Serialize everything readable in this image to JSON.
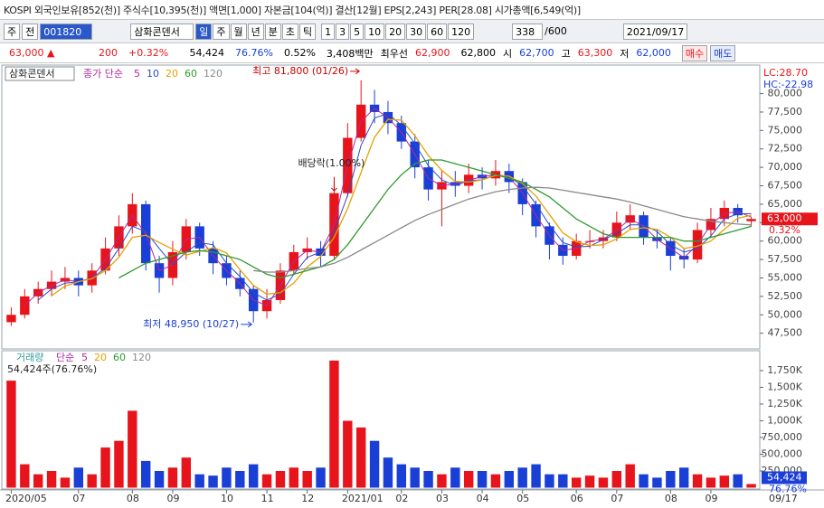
{
  "header": {
    "title": "KOSPI 외국인보유[852(천)] 주식수[10,395(천)] 액면[1,000] 자본금[104(억)] 결산[12월] EPS[2,243] PER[28.08] 시가총액[6,549(억)]"
  },
  "toolbar": {
    "period_type": "주",
    "prev": "전",
    "code": "001820",
    "name": "삼화콘덴서",
    "intervals": [
      "일",
      "주",
      "월",
      "년",
      "분",
      "초",
      "틱"
    ],
    "tick_buttons": [
      "1",
      "3",
      "5",
      "10",
      "20",
      "30",
      "60",
      "120"
    ],
    "count": "338",
    "max": "/600",
    "date": "2021/09/17"
  },
  "quote": {
    "price": "63,000 ▲",
    "change": "200",
    "change_rate": "+0.32%",
    "volume": "54,424",
    "volume_ratio": "76.76%",
    "turnover": "0.52%",
    "amount": "3,408백만",
    "best_label": "최우선",
    "ask": "62,900",
    "bid": "62,800",
    "open_label": "시",
    "open": "62,700",
    "high_label": "고",
    "high": "63,300",
    "low_label": "저",
    "low": "62,000",
    "buy": "매수",
    "sell": "매도"
  },
  "chart_data": {
    "type": "candlestick",
    "title": "삼화콘덴서",
    "ma_label": "종가 단순",
    "categories": [
      "2020/05",
      null,
      null,
      null,
      null,
      "07",
      null,
      null,
      null,
      "08",
      null,
      null,
      "09",
      null,
      null,
      null,
      "10",
      null,
      null,
      "11",
      null,
      null,
      "12",
      null,
      null,
      "2021/01",
      null,
      null,
      null,
      "02",
      null,
      null,
      "03",
      null,
      null,
      "04",
      null,
      null,
      "05",
      null,
      null,
      null,
      "06",
      null,
      null,
      "07",
      null,
      null,
      null,
      "08",
      null,
      null,
      "09",
      null,
      null,
      null
    ],
    "open": [
      49000,
      50000,
      52500,
      53500,
      54500,
      55000,
      54000,
      56000,
      59000,
      62000,
      65000,
      57000,
      55000,
      58500,
      62000,
      59000,
      57000,
      55000,
      53500,
      50500,
      52000,
      56000,
      58500,
      59000,
      58000,
      66500,
      74000,
      78500,
      77500,
      76000,
      73500,
      70000,
      67000,
      68000,
      67500,
      69000,
      68500,
      69500,
      68000,
      65000,
      62000,
      59500,
      58000,
      60000,
      60000,
      60500,
      62500,
      63500,
      60500,
      60000,
      58000,
      57500,
      61500,
      63000,
      64500,
      62700
    ],
    "high": [
      51000,
      53500,
      54500,
      56000,
      56500,
      56000,
      57000,
      60500,
      63500,
      66500,
      65500,
      58000,
      60000,
      63000,
      62500,
      60000,
      58000,
      56000,
      54000,
      53500,
      57000,
      59500,
      60500,
      60000,
      68000,
      76000,
      81800,
      80500,
      79000,
      77000,
      74500,
      71000,
      69500,
      69500,
      70500,
      70000,
      71000,
      70500,
      68500,
      65500,
      62500,
      60500,
      61000,
      61500,
      61500,
      64000,
      65000,
      64000,
      61500,
      60500,
      59000,
      62500,
      64500,
      65500,
      65000,
      63300
    ],
    "low": [
      48500,
      49500,
      51500,
      52500,
      53500,
      52500,
      53000,
      55500,
      58000,
      61000,
      56000,
      53000,
      54000,
      57500,
      58000,
      55500,
      54000,
      52500,
      48950,
      49500,
      51500,
      55500,
      57500,
      56500,
      57500,
      66000,
      73500,
      76000,
      74500,
      72500,
      68500,
      65500,
      62000,
      66000,
      66500,
      67000,
      67500,
      66500,
      63500,
      60500,
      57500,
      56800,
      57500,
      59000,
      59000,
      60000,
      61500,
      59500,
      59000,
      56000,
      56300,
      57000,
      60500,
      62000,
      62500,
      62000
    ],
    "close": [
      50000,
      52500,
      53500,
      54500,
      55000,
      54000,
      56000,
      59000,
      62000,
      65000,
      57000,
      55000,
      58500,
      62000,
      59000,
      57000,
      55000,
      53500,
      50500,
      52000,
      56000,
      58500,
      59000,
      58000,
      66500,
      74000,
      78500,
      77500,
      76000,
      73500,
      70000,
      67000,
      68000,
      67500,
      69000,
      68500,
      69500,
      68000,
      65000,
      62000,
      59500,
      58000,
      60000,
      60000,
      60500,
      62500,
      63500,
      60500,
      60000,
      58000,
      57500,
      61500,
      63000,
      64500,
      63500,
      63000
    ],
    "up_color": "#e8141b",
    "down_color": "#1a3fd6",
    "series": [
      {
        "name": "5",
        "color": "#b0289c",
        "values": [
          null,
          51250,
          53000,
          54000,
          54750,
          54500,
          55000,
          57500,
          60500,
          63500,
          61000,
          56000,
          56750,
          60250,
          60500,
          58000,
          56000,
          54250,
          52000,
          51250,
          54000,
          57250,
          58750,
          58500,
          62250,
          70250,
          76250,
          78000,
          76750,
          74750,
          71750,
          68500,
          67500,
          67750,
          68250,
          68750,
          69000,
          68750,
          66500,
          63500,
          60750,
          58750,
          59000,
          60000,
          60250,
          61500,
          63000,
          62000,
          60250,
          59000,
          57750,
          59500,
          62250,
          63750,
          64000,
          63250
        ]
      },
      {
        "name": "10",
        "color": "#2a4cc8",
        "values": [
          null,
          null,
          52000,
          53500,
          54300,
          54500,
          55000,
          56300,
          59000,
          62000,
          61300,
          59000,
          56800,
          58500,
          59800,
          59500,
          57000,
          55200,
          53000,
          52000,
          52800,
          55500,
          57800,
          58500,
          61200,
          66200,
          73000,
          76700,
          77300,
          75700,
          73200,
          70200,
          68300,
          67500,
          68200,
          68300,
          69000,
          68700,
          67500,
          65000,
          62200,
          59800,
          59200,
          59300,
          60200,
          61000,
          62200,
          62200,
          61300,
          59500,
          58500,
          59000,
          60700,
          63000,
          63700,
          63700
        ]
      },
      {
        "name": "20",
        "color": "#e6a100",
        "values": [
          null,
          null,
          null,
          52600,
          53900,
          54500,
          54900,
          56000,
          57800,
          60500,
          60800,
          59800,
          58900,
          58100,
          58600,
          59100,
          58400,
          56100,
          54000,
          52800,
          53000,
          54300,
          56500,
          57900,
          60500,
          64400,
          69300,
          74100,
          76500,
          76400,
          74300,
          71600,
          69600,
          68100,
          68000,
          68300,
          68900,
          68800,
          67800,
          66100,
          63600,
          61100,
          59900,
          59400,
          59500,
          60300,
          61600,
          61800,
          61600,
          60500,
          59000,
          59300,
          60000,
          61600,
          63100,
          63500
        ]
      },
      {
        "name": "60",
        "color": "#2e9a2e",
        "values": [
          null,
          null,
          null,
          null,
          null,
          null,
          null,
          null,
          55000,
          56000,
          57000,
          57500,
          58000,
          58500,
          58700,
          58500,
          58000,
          57500,
          56500,
          55500,
          55000,
          55500,
          56000,
          56500,
          57500,
          59500,
          62000,
          64500,
          67000,
          69000,
          70500,
          71000,
          71000,
          70500,
          70000,
          69500,
          69000,
          68500,
          68000,
          67000,
          66000,
          64500,
          63000,
          62000,
          61000,
          60500,
          60500,
          60500,
          60500,
          60500,
          60000,
          60000,
          60500,
          61000,
          61500,
          62000
        ]
      },
      {
        "name": "120",
        "color": "#8a8a8a",
        "values": [
          null,
          null,
          null,
          null,
          null,
          null,
          null,
          null,
          null,
          null,
          null,
          null,
          null,
          null,
          null,
          null,
          null,
          null,
          56000,
          55800,
          55800,
          56000,
          56300,
          56500,
          57000,
          57800,
          58800,
          59800,
          60800,
          61800,
          62800,
          63600,
          64300,
          65000,
          65700,
          66200,
          66700,
          67000,
          67200,
          67300,
          67200,
          66900,
          66600,
          66300,
          66000,
          65700,
          65300,
          64800,
          64300,
          63800,
          63300,
          63000,
          62700,
          62500,
          62300,
          62200
        ]
      }
    ],
    "ylim": [
      45500,
      83500
    ],
    "yticks": [
      {
        "value": 47500,
        "label": "47,500"
      },
      {
        "value": 50000,
        "label": "50,000"
      },
      {
        "value": 52500,
        "label": "52,500"
      },
      {
        "value": 55000,
        "label": "55,000"
      },
      {
        "value": 57500,
        "label": "57,500"
      },
      {
        "value": 60000,
        "label": "60,000"
      },
      {
        "value": 62500,
        "label": "62,500"
      },
      {
        "value": 65000,
        "label": "65,000"
      },
      {
        "value": 67500,
        "label": "67,500"
      },
      {
        "value": 70000,
        "label": "70,000"
      },
      {
        "value": 72500,
        "label": "72,500"
      },
      {
        "value": 75000,
        "label": "75,000"
      },
      {
        "value": 77500,
        "label": "77,500"
      },
      {
        "value": 80000,
        "label": "80,000"
      }
    ],
    "annotations": {
      "high": "최고 81,800 (01/26)",
      "low": "최저 48,950 (10/27)",
      "dividend": "배당락(1.00%)"
    },
    "lc": "LC:28.70",
    "hc": "HC:-22.98",
    "last_price": "63,000",
    "last_change": "0.32%",
    "end_date": "09/17",
    "volume": {
      "title": "거래량",
      "ma_label": "단순",
      "ma_legend": [
        {
          "name": "5",
          "color": "#b0289c"
        },
        {
          "name": "20",
          "color": "#e6a100"
        },
        {
          "name": "60",
          "color": "#2e9a2e"
        },
        {
          "name": "120",
          "color": "#8a8a8a"
        }
      ],
      "info": "54,424주(76.76%)",
      "values": [
        1600000,
        350000,
        200000,
        250000,
        150000,
        300000,
        200000,
        600000,
        700000,
        1150000,
        400000,
        250000,
        300000,
        450000,
        200000,
        180000,
        300000,
        250000,
        350000,
        200000,
        250000,
        300000,
        250000,
        300000,
        1900000,
        1000000,
        900000,
        700000,
        450000,
        350000,
        300000,
        250000,
        200000,
        300000,
        250000,
        250000,
        200000,
        250000,
        300000,
        350000,
        200000,
        200000,
        150000,
        180000,
        150000,
        250000,
        350000,
        200000,
        150000,
        250000,
        300000,
        200000,
        150000,
        180000,
        200000,
        54424
      ],
      "ylim": [
        0,
        2000000
      ],
      "yticks": [
        {
          "value": 250000,
          "label": "250,000"
        },
        {
          "value": 500000,
          "label": "500,000"
        },
        {
          "value": 750000,
          "label": "750,000"
        },
        {
          "value": 1000000,
          "label": "1,000K"
        },
        {
          "value": 1250000,
          "label": "1,250K"
        },
        {
          "value": 1500000,
          "label": "1,500K"
        },
        {
          "value": 1750000,
          "label": "1,750K"
        }
      ],
      "last_volume": "54,424",
      "last_ratio": "76.76%"
    }
  }
}
